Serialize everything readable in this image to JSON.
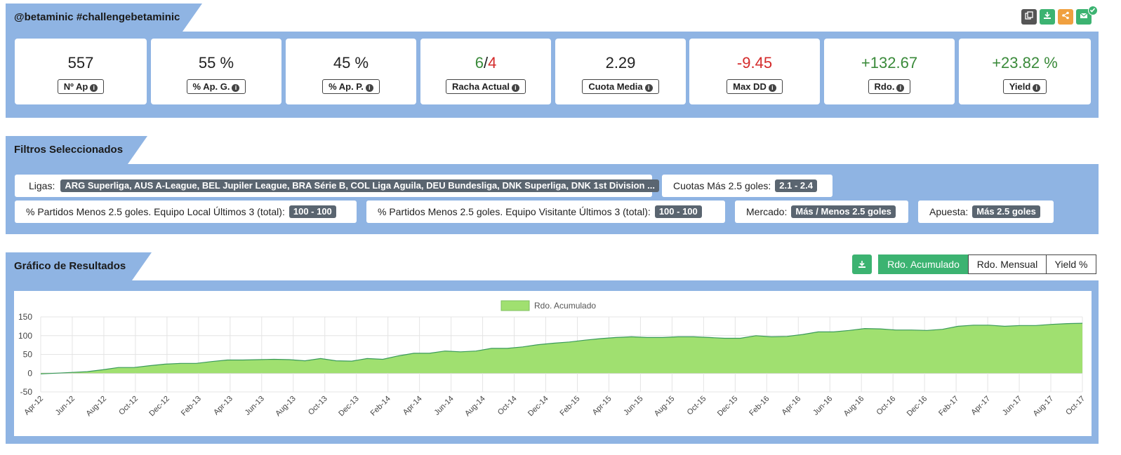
{
  "header": {
    "title": "@betaminic #challengebetaminic",
    "icons": [
      "copy-icon",
      "download-icon",
      "share-icon",
      "mail-icon"
    ]
  },
  "stats": [
    {
      "value": "557",
      "label": "Nº Ap",
      "color": "#222222"
    },
    {
      "value": "55 %",
      "label": "% Ap. G.",
      "color": "#222222"
    },
    {
      "value": "45 %",
      "label": "% Ap. P.",
      "color": "#222222"
    },
    {
      "value_a": "6",
      "value_sep": "/",
      "value_b": "4",
      "label": "Racha Actual"
    },
    {
      "value": "2.29",
      "label": "Cuota Media",
      "color": "#222222"
    },
    {
      "value": "-9.45",
      "label": "Max DD",
      "color": "#d42a2a"
    },
    {
      "value": "+132.67",
      "label": "Rdo.",
      "color": "#3a8a3a"
    },
    {
      "value": "+23.82 %",
      "label": "Yield",
      "color": "#3a8a3a"
    }
  ],
  "filters_section": {
    "title": "Filtros Seleccionados",
    "items": [
      {
        "label": "Ligas:",
        "value": "ARG Superliga, AUS A-League, BEL Jupiler League, BRA Série B, COL Liga Aguila, DEU Bundesliga, DNK Superliga, DNK 1st Division ..."
      },
      {
        "label": "Cuotas Más 2.5 goles:",
        "value": "2.1 - 2.4"
      },
      {
        "label": "% Partidos Menos 2.5 goles. Equipo Local Últimos 3 (total):",
        "value": "100 - 100"
      },
      {
        "label": "% Partidos Menos 2.5 goles. Equipo Visitante Últimos 3 (total):",
        "value": "100 - 100"
      },
      {
        "label": "Mercado:",
        "value": "Más / Menos 2.5 goles"
      },
      {
        "label": "Apuesta:",
        "value": "Más 2.5 goles"
      }
    ]
  },
  "chart_section": {
    "title": "Gráfico de Resultados",
    "tabs": [
      "Rdo. Acumulado",
      "Rdo. Mensual",
      "Yield %"
    ],
    "active_tab": "Rdo. Acumulado"
  },
  "chart_data": {
    "type": "area",
    "legend": [
      "Rdo. Acumulado"
    ],
    "legend_position": "top",
    "grid": true,
    "ylim": [
      -50,
      150
    ],
    "yticks": [
      150,
      100,
      50,
      0,
      -50
    ],
    "color": "#a0e070",
    "line_color": "#3a9a5a",
    "x_tick_labels": [
      "Apr-12",
      "Jun-12",
      "Aug-12",
      "Oct-12",
      "Dec-12",
      "Feb-13",
      "Apr-13",
      "Jun-13",
      "Aug-13",
      "Oct-13",
      "Dec-13",
      "Feb-14",
      "Apr-14",
      "Jun-14",
      "Aug-14",
      "Oct-14",
      "Dec-14",
      "Feb-15",
      "Apr-15",
      "Jun-15",
      "Aug-15",
      "Oct-15",
      "Dec-15",
      "Feb-16",
      "Apr-16",
      "Jun-16",
      "Aug-16",
      "Oct-16",
      "Dec-16",
      "Feb-17",
      "Apr-17",
      "Jun-17",
      "Aug-17",
      "Oct-17"
    ],
    "series": [
      {
        "name": "Rdo. Acumulado",
        "values": [
          -2,
          0,
          2,
          4,
          9,
          15,
          15,
          20,
          24,
          26,
          26,
          31,
          35,
          35,
          36,
          37,
          36,
          33,
          39,
          33,
          32,
          39,
          37,
          46,
          53,
          53,
          59,
          57,
          59,
          66,
          66,
          70,
          76,
          80,
          83,
          88,
          92,
          95,
          97,
          95,
          95,
          97,
          97,
          95,
          93,
          93,
          100,
          97,
          98,
          103,
          110,
          110,
          114,
          119,
          118,
          115,
          115,
          114,
          117,
          125,
          128,
          128,
          125,
          127,
          127,
          130,
          132,
          133
        ]
      }
    ]
  }
}
